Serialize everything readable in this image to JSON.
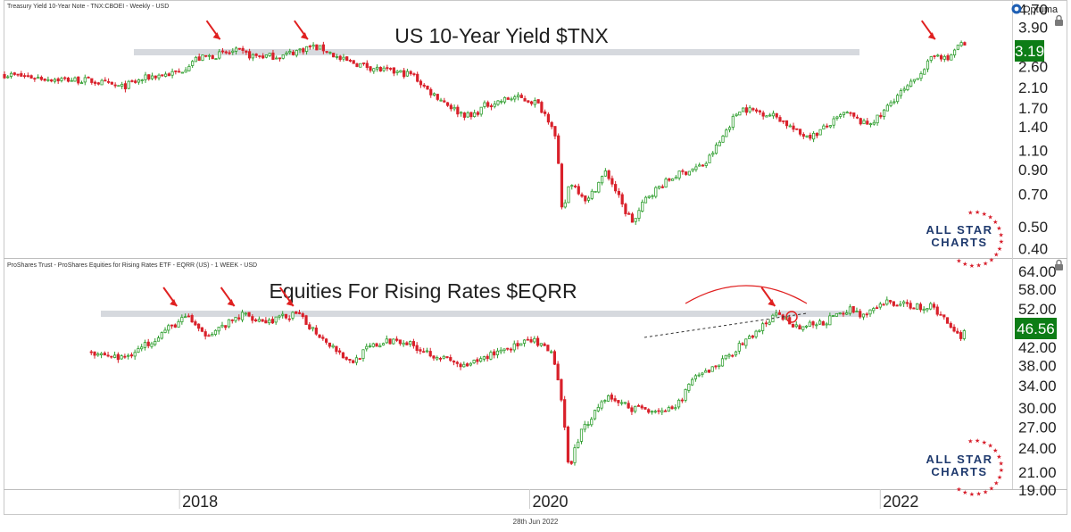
{
  "chart_data": [
    {
      "type": "candlestick",
      "header": "Treasury Yield 10-Year Note - TNX:CBOEI - Weekly - USD",
      "title": "US 10-Year Yield $TNX",
      "scale": "log",
      "ylim": [
        0.38,
        4.8
      ],
      "y_ticks": [
        "4.70",
        "3.90",
        "3.19",
        "2.60",
        "2.10",
        "1.70",
        "1.40",
        "1.10",
        "0.90",
        "0.70",
        "0.50",
        "0.40"
      ],
      "last_value": "3.19",
      "last_value_color": "#0d7d16",
      "resistance_level": 3.17,
      "arrow_dates": [
        "2018-04-01",
        "2018-10-01",
        "2022-05-01"
      ],
      "series": [
        {
          "x": "2017-01-01",
          "y": 2.4
        },
        {
          "x": "2017-04-01",
          "y": 2.3
        },
        {
          "x": "2017-07-01",
          "y": 2.25
        },
        {
          "x": "2017-09-01",
          "y": 2.1
        },
        {
          "x": "2017-11-01",
          "y": 2.35
        },
        {
          "x": "2018-01-01",
          "y": 2.45
        },
        {
          "x": "2018-02-01",
          "y": 2.8
        },
        {
          "x": "2018-03-01",
          "y": 2.88
        },
        {
          "x": "2018-05-01",
          "y": 3.05
        },
        {
          "x": "2018-06-01",
          "y": 2.9
        },
        {
          "x": "2018-08-01",
          "y": 2.9
        },
        {
          "x": "2018-10-01",
          "y": 3.2
        },
        {
          "x": "2018-11-01",
          "y": 3.1
        },
        {
          "x": "2018-12-01",
          "y": 2.8
        },
        {
          "x": "2019-01-01",
          "y": 2.7
        },
        {
          "x": "2019-03-01",
          "y": 2.5
        },
        {
          "x": "2019-05-01",
          "y": 2.4
        },
        {
          "x": "2019-06-01",
          "y": 2.05
        },
        {
          "x": "2019-08-01",
          "y": 1.65
        },
        {
          "x": "2019-09-01",
          "y": 1.55
        },
        {
          "x": "2019-10-01",
          "y": 1.75
        },
        {
          "x": "2019-12-01",
          "y": 1.9
        },
        {
          "x": "2020-01-15",
          "y": 1.8
        },
        {
          "x": "2020-02-20",
          "y": 1.4
        },
        {
          "x": "2020-03-09",
          "y": 0.55
        },
        {
          "x": "2020-03-25",
          "y": 0.8
        },
        {
          "x": "2020-05-01",
          "y": 0.65
        },
        {
          "x": "2020-06-08",
          "y": 0.88
        },
        {
          "x": "2020-07-15",
          "y": 0.6
        },
        {
          "x": "2020-08-05",
          "y": 0.52
        },
        {
          "x": "2020-09-01",
          "y": 0.68
        },
        {
          "x": "2020-11-01",
          "y": 0.85
        },
        {
          "x": "2021-01-01",
          "y": 0.95
        },
        {
          "x": "2021-02-01",
          "y": 1.2
        },
        {
          "x": "2021-03-15",
          "y": 1.7
        },
        {
          "x": "2021-05-01",
          "y": 1.62
        },
        {
          "x": "2021-06-01",
          "y": 1.55
        },
        {
          "x": "2021-07-15",
          "y": 1.3
        },
        {
          "x": "2021-08-15",
          "y": 1.28
        },
        {
          "x": "2021-10-01",
          "y": 1.5
        },
        {
          "x": "2021-10-20",
          "y": 1.62
        },
        {
          "x": "2021-12-01",
          "y": 1.43
        },
        {
          "x": "2022-01-01",
          "y": 1.55
        },
        {
          "x": "2022-02-01",
          "y": 1.9
        },
        {
          "x": "2022-03-01",
          "y": 2.1
        },
        {
          "x": "2022-04-01",
          "y": 2.55
        },
        {
          "x": "2022-05-01",
          "y": 3.0
        },
        {
          "x": "2022-05-20",
          "y": 2.75
        },
        {
          "x": "2022-06-15",
          "y": 3.3
        },
        {
          "x": "2022-06-28",
          "y": 3.19
        }
      ]
    },
    {
      "type": "candlestick",
      "header": "ProShares Trust - ProShares Equities for Rising Rates ETF - EQRR (US) - 1 WEEK - USD",
      "title": "Equities For Rising Rates $EQRR",
      "scale": "log",
      "ylim": [
        19.5,
        66.0
      ],
      "y_ticks": [
        "64.00",
        "58.00",
        "52.00",
        "46.56",
        "42.00",
        "38.00",
        "34.00",
        "30.00",
        "27.00",
        "24.00",
        "21.00",
        "19.00"
      ],
      "last_value": "46.56",
      "last_value_color": "#0d7d16",
      "resistance_level": 50.5,
      "arrow_dates": [
        "2018-01-01",
        "2018-05-01",
        "2018-09-01",
        "2021-06-01"
      ],
      "series": [
        {
          "x": "2017-07-01",
          "y": 41.0
        },
        {
          "x": "2017-09-01",
          "y": 39.5
        },
        {
          "x": "2017-10-15",
          "y": 42.0
        },
        {
          "x": "2017-12-01",
          "y": 46.0
        },
        {
          "x": "2018-01-20",
          "y": 50.0
        },
        {
          "x": "2018-02-15",
          "y": 45.0
        },
        {
          "x": "2018-04-01",
          "y": 47.0
        },
        {
          "x": "2018-05-15",
          "y": 50.5
        },
        {
          "x": "2018-07-01",
          "y": 48.5
        },
        {
          "x": "2018-09-01",
          "y": 50.5
        },
        {
          "x": "2018-10-20",
          "y": 45.0
        },
        {
          "x": "2018-12-25",
          "y": 38.5
        },
        {
          "x": "2019-02-01",
          "y": 42.0
        },
        {
          "x": "2019-04-01",
          "y": 44.0
        },
        {
          "x": "2019-06-01",
          "y": 41.0
        },
        {
          "x": "2019-08-20",
          "y": 37.5
        },
        {
          "x": "2019-11-01",
          "y": 41.5
        },
        {
          "x": "2020-01-10",
          "y": 43.5
        },
        {
          "x": "2020-02-20",
          "y": 40.0
        },
        {
          "x": "2020-03-23",
          "y": 21.5
        },
        {
          "x": "2020-04-15",
          "y": 26.0
        },
        {
          "x": "2020-06-08",
          "y": 32.0
        },
        {
          "x": "2020-08-01",
          "y": 30.0
        },
        {
          "x": "2020-10-30",
          "y": 29.5
        },
        {
          "x": "2020-12-01",
          "y": 34.5
        },
        {
          "x": "2021-02-01",
          "y": 38.5
        },
        {
          "x": "2021-04-01",
          "y": 44.0
        },
        {
          "x": "2021-06-01",
          "y": 50.5
        },
        {
          "x": "2021-07-15",
          "y": 47.0
        },
        {
          "x": "2021-09-01",
          "y": 48.0
        },
        {
          "x": "2021-11-01",
          "y": 52.0
        },
        {
          "x": "2021-12-01",
          "y": 50.0
        },
        {
          "x": "2022-01-15",
          "y": 54.0
        },
        {
          "x": "2022-03-01",
          "y": 53.0
        },
        {
          "x": "2022-04-20",
          "y": 52.5
        },
        {
          "x": "2022-05-20",
          "y": 48.5
        },
        {
          "x": "2022-06-17",
          "y": 44.5
        },
        {
          "x": "2022-06-28",
          "y": 46.56
        }
      ]
    }
  ],
  "x_axis": {
    "range": [
      "2017-01-01",
      "2022-10-01"
    ],
    "labels": [
      {
        "text": "2018",
        "date": "2018-01-01"
      },
      {
        "text": "2020",
        "date": "2020-01-01"
      },
      {
        "text": "2022",
        "date": "2022-01-01"
      }
    ]
  },
  "footer": {
    "date": "28th Jun 2022"
  },
  "branding": {
    "logo": "Optuma",
    "watermark_line1": "ALL STAR",
    "watermark_line2": "CHARTS"
  },
  "icons": [
    "lock-icon",
    "optuma-logo-icon"
  ],
  "colors": {
    "up": "#2e9e2e",
    "down": "#d9202a",
    "band": "#d6d9de",
    "arrow": "#e02020",
    "badge": "#0d7d16"
  }
}
